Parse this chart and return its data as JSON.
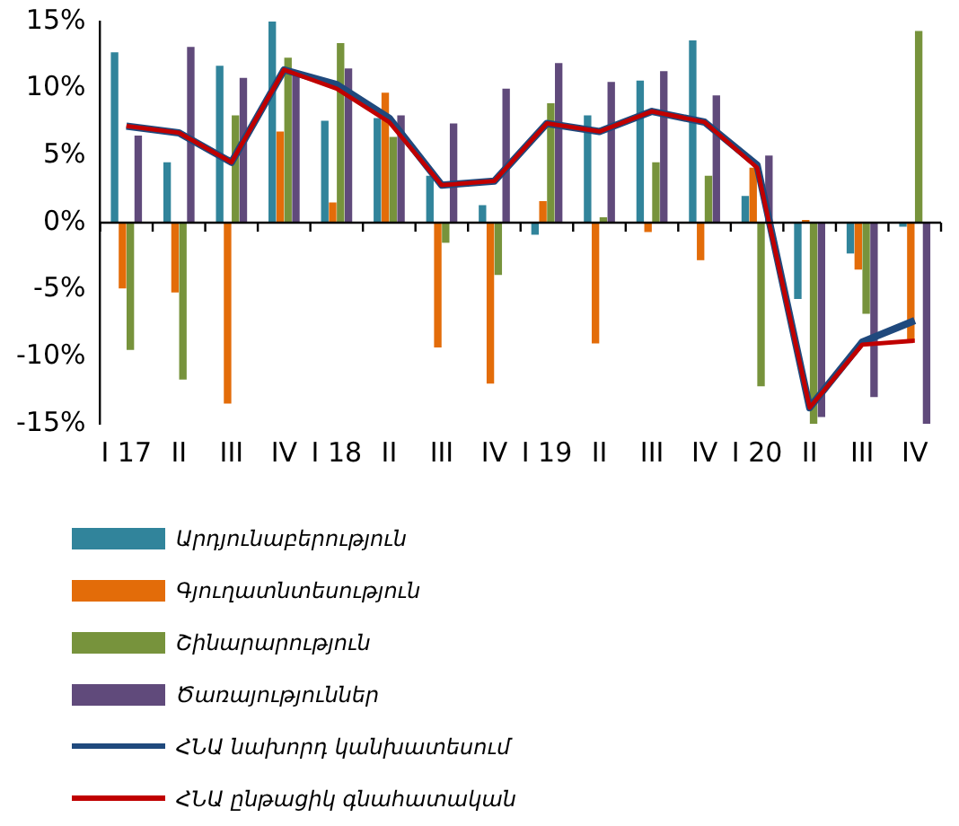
{
  "chart_data": {
    "type": "bar",
    "categories": [
      "I 17",
      "II",
      "III",
      "IV",
      "I 18",
      "II",
      "III",
      "IV",
      "I 19",
      "II",
      "III",
      "IV",
      "I 20",
      "II",
      "III",
      "IV"
    ],
    "series": [
      {
        "name": "Արդյունաբերություն",
        "color": "#31849b",
        "values": [
          12.7,
          4.5,
          11.7,
          15.0,
          7.6,
          7.8,
          3.5,
          1.3,
          -0.9,
          8.0,
          10.6,
          13.6,
          2.0,
          -5.7,
          -2.3,
          -0.3
        ]
      },
      {
        "name": "Գյուղատնտեսություն",
        "color": "#e36c09",
        "values": [
          -4.9,
          -5.2,
          -13.5,
          6.8,
          1.5,
          9.7,
          -9.3,
          -12.0,
          1.6,
          -9.0,
          -0.7,
          -2.8,
          4.1,
          0.2,
          -3.5,
          -8.8
        ]
      },
      {
        "name": "Շինարարություն",
        "color": "#77933c",
        "values": [
          -9.5,
          -11.7,
          8.0,
          12.3,
          13.4,
          6.4,
          -1.5,
          -3.9,
          8.9,
          0.4,
          4.5,
          3.5,
          -12.2,
          -15.0,
          -6.8,
          14.3
        ]
      },
      {
        "name": "Ծառայություններ",
        "color": "#604a7b",
        "values": [
          6.5,
          13.1,
          10.8,
          11.0,
          11.5,
          8.0,
          7.4,
          10.0,
          11.9,
          10.5,
          11.3,
          9.5,
          5.0,
          -14.5,
          -13.0,
          -15.0
        ]
      },
      {
        "name": "ՀՆԱ  նախորդ կանխատեսում",
        "type": "line",
        "color": "#1f497d",
        "values": [
          7.2,
          6.7,
          4.5,
          11.4,
          10.3,
          7.8,
          2.8,
          3.1,
          7.4,
          6.8,
          8.3,
          7.5,
          4.3,
          -13.8,
          -8.9,
          -7.3
        ]
      },
      {
        "name": "ՀՆԱ  ընթացիկ գնահատական",
        "type": "line",
        "color": "#c00000",
        "values": [
          7.2,
          6.7,
          4.5,
          11.4,
          10.0,
          7.5,
          2.8,
          3.1,
          7.4,
          6.8,
          8.3,
          7.5,
          4.1,
          -13.8,
          -9.1,
          -8.8
        ]
      }
    ],
    "ylim": [
      -15,
      15
    ],
    "yticks": [
      {
        "value": -15,
        "label": "-15%"
      },
      {
        "value": -10,
        "label": "-10%"
      },
      {
        "value": -5,
        "label": "-5%"
      },
      {
        "value": 0,
        "label": "0%"
      },
      {
        "value": 5,
        "label": "5%"
      },
      {
        "value": 10,
        "label": "10%"
      },
      {
        "value": 15,
        "label": "15%"
      }
    ],
    "ref_lines": [
      {
        "axis": "y",
        "value": 0,
        "color": "#000000"
      }
    ],
    "grid": false,
    "legend": "bottom left",
    "marker": "none",
    "line_style": "solid"
  }
}
